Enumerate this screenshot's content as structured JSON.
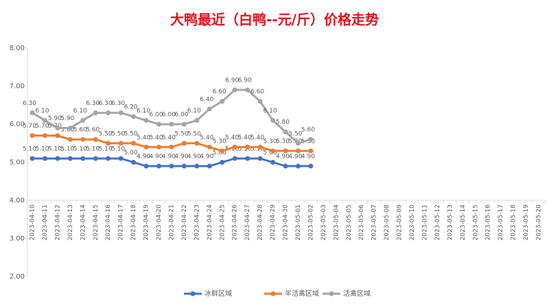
{
  "chart_data": {
    "type": "line",
    "title": "大鸭最近（白鸭--元/斤）价格走势",
    "categories": [
      "2023-04-10",
      "2023-04-11",
      "2023-04-12",
      "2023-04-13",
      "2023-04-14",
      "2023-04-15",
      "2023-04-16",
      "2023-04-17",
      "2023-04-18",
      "2023-04-19",
      "2023-04-20",
      "2023-04-21",
      "2023-04-22",
      "2023-04-23",
      "2023-04-24",
      "2023-04-25",
      "2023-04-26",
      "2023-04-27",
      "2023-04-28",
      "2023-04-29",
      "2023-04-30",
      "2023-05-01",
      "2023-05-02",
      "2023-05-03",
      "2023-05-04",
      "2023-05-05",
      "2023-05-06",
      "2023-05-07",
      "2023-05-08",
      "2023-05-09",
      "2023-05-10",
      "2023-05-11",
      "2023-05-12",
      "2023-05-13",
      "2023-05-14",
      "2023-05-15",
      "2023-05-16",
      "2023-05-17",
      "2023-05-18",
      "2023-05-19",
      "2023-05-20"
    ],
    "series": [
      {
        "name": "冰鲜区域",
        "color": "#4472c4",
        "values": [
          5.1,
          5.1,
          5.1,
          5.1,
          5.1,
          5.1,
          5.1,
          5.1,
          5.0,
          4.9,
          4.9,
          4.9,
          4.9,
          4.9,
          4.9,
          5.0,
          5.1,
          5.1,
          5.1,
          5.0,
          4.9,
          4.9,
          4.9,
          null,
          null,
          null,
          null,
          null,
          null,
          null,
          null,
          null,
          null,
          null,
          null,
          null,
          null,
          null,
          null,
          null,
          null
        ],
        "value_labels": [
          "5.10",
          "5.10",
          "5.10",
          "5.10",
          "5.10",
          "5.10",
          "5.10",
          "5.10",
          "5.00",
          "4.90",
          "4.90",
          "4.90",
          "4.90",
          "4.90",
          "4.90",
          "5.00",
          "5.10",
          "5.10",
          "5.10",
          "5.00",
          "4.90",
          "4.90",
          "4.90",
          null,
          null,
          null,
          null,
          null,
          null,
          null,
          null,
          null,
          null,
          null,
          null,
          null,
          null,
          null,
          null,
          null,
          null
        ]
      },
      {
        "name": "半活禽区域",
        "color": "#ed7d31",
        "values": [
          5.7,
          5.7,
          5.7,
          5.6,
          5.6,
          5.6,
          5.5,
          5.5,
          5.5,
          5.4,
          5.4,
          5.4,
          5.5,
          5.5,
          5.4,
          5.3,
          5.4,
          5.4,
          5.4,
          5.3,
          5.3,
          5.3,
          5.3,
          null,
          null,
          null,
          null,
          null,
          null,
          null,
          null,
          null,
          null,
          null,
          null,
          null,
          null,
          null,
          null,
          null,
          null
        ],
        "value_labels": [
          "5.70",
          "5.70",
          "5.70",
          "5.60",
          "5.60",
          "5.60",
          "5.50",
          "5.50",
          "5.50",
          "5.40",
          "5.40",
          "5.40",
          "5.50",
          "5.50",
          "5.40",
          "5.30",
          "5.40",
          "5.40",
          "5.40",
          "5.30",
          "5.30",
          "5.30",
          "5.30",
          null,
          null,
          null,
          null,
          null,
          null,
          null,
          null,
          null,
          null,
          null,
          null,
          null,
          null,
          null,
          null,
          null,
          null
        ]
      },
      {
        "name": "活禽区域",
        "color": "#a5a5a5",
        "values": [
          6.3,
          6.1,
          5.9,
          5.9,
          6.1,
          6.3,
          6.3,
          6.3,
          6.2,
          6.1,
          6.0,
          6.0,
          6.0,
          6.1,
          6.4,
          6.6,
          6.9,
          6.9,
          6.6,
          6.1,
          5.8,
          5.5,
          5.6,
          null,
          null,
          null,
          null,
          null,
          null,
          null,
          null,
          null,
          null,
          null,
          null,
          null,
          null,
          null,
          null,
          null,
          null
        ],
        "value_labels": [
          "6.30",
          "6.10",
          "5.90",
          "5.90",
          "6.10",
          "6.30",
          "6.30",
          "6.30",
          "6.20",
          "6.10",
          "6.00",
          "6.00",
          "6.00",
          "6.10",
          "6.40",
          "6.60",
          "6.90",
          "6.90",
          "6.60",
          "6.10",
          "5.80",
          "5.50",
          "5.60",
          null,
          null,
          null,
          null,
          null,
          null,
          null,
          null,
          null,
          null,
          null,
          null,
          null,
          null,
          null,
          null,
          null,
          null
        ]
      }
    ],
    "ylim": [
      2,
      8
    ],
    "yticks": [
      {
        "value": 2,
        "label": "2.00"
      },
      {
        "value": 3,
        "label": "3.00"
      },
      {
        "value": 4,
        "label": "4.00"
      },
      {
        "value": 5,
        "label": "5.00"
      },
      {
        "value": 6,
        "label": "6.00"
      },
      {
        "value": 7,
        "label": "7.00"
      },
      {
        "value": 8,
        "label": "8.00"
      }
    ],
    "x_axis_crosses": 4,
    "legend": "bottom"
  }
}
